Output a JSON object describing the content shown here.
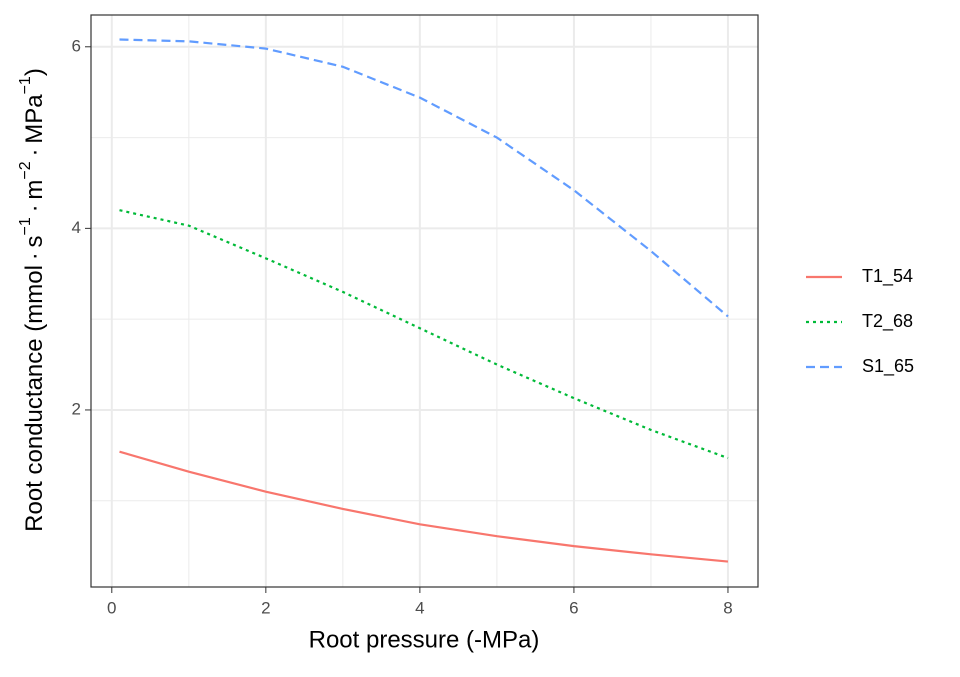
{
  "chart_data": {
    "type": "line",
    "x_label": "Root pressure (-MPa)",
    "y_label": [
      "Root conductance  (mmol · s",
      "−1",
      " · m",
      "−2",
      " · MPa",
      "−1",
      ")"
    ],
    "x": [
      0.1,
      1,
      2,
      3,
      4,
      5,
      6,
      7,
      8
    ],
    "series": [
      {
        "name": "T1_54",
        "color": "#f8766d",
        "linestyle": "solid",
        "values": [
          1.54,
          1.32,
          1.1,
          0.91,
          0.74,
          0.61,
          0.5,
          0.41,
          0.33
        ]
      },
      {
        "name": "T2_68",
        "color": "#00ba38",
        "linestyle": "dotted",
        "values": [
          4.2,
          4.03,
          3.67,
          3.3,
          2.9,
          2.5,
          2.13,
          1.78,
          1.47
        ]
      },
      {
        "name": "S1_65",
        "color": "#619cff",
        "linestyle": "dashed",
        "values": [
          6.08,
          6.06,
          5.98,
          5.78,
          5.44,
          5.0,
          4.42,
          3.75,
          3.03
        ]
      }
    ],
    "xlim": [
      -0.27,
      8.39
    ],
    "ylim": [
      0.05,
      6.35
    ],
    "xticks": [
      0,
      2,
      4,
      6,
      8
    ],
    "yticks": [
      2,
      4,
      6
    ],
    "x_minor_ticks": [
      1,
      3,
      5,
      7
    ],
    "y_minor_ticks": [
      1,
      3,
      5
    ],
    "grid": true,
    "legend": "right"
  }
}
